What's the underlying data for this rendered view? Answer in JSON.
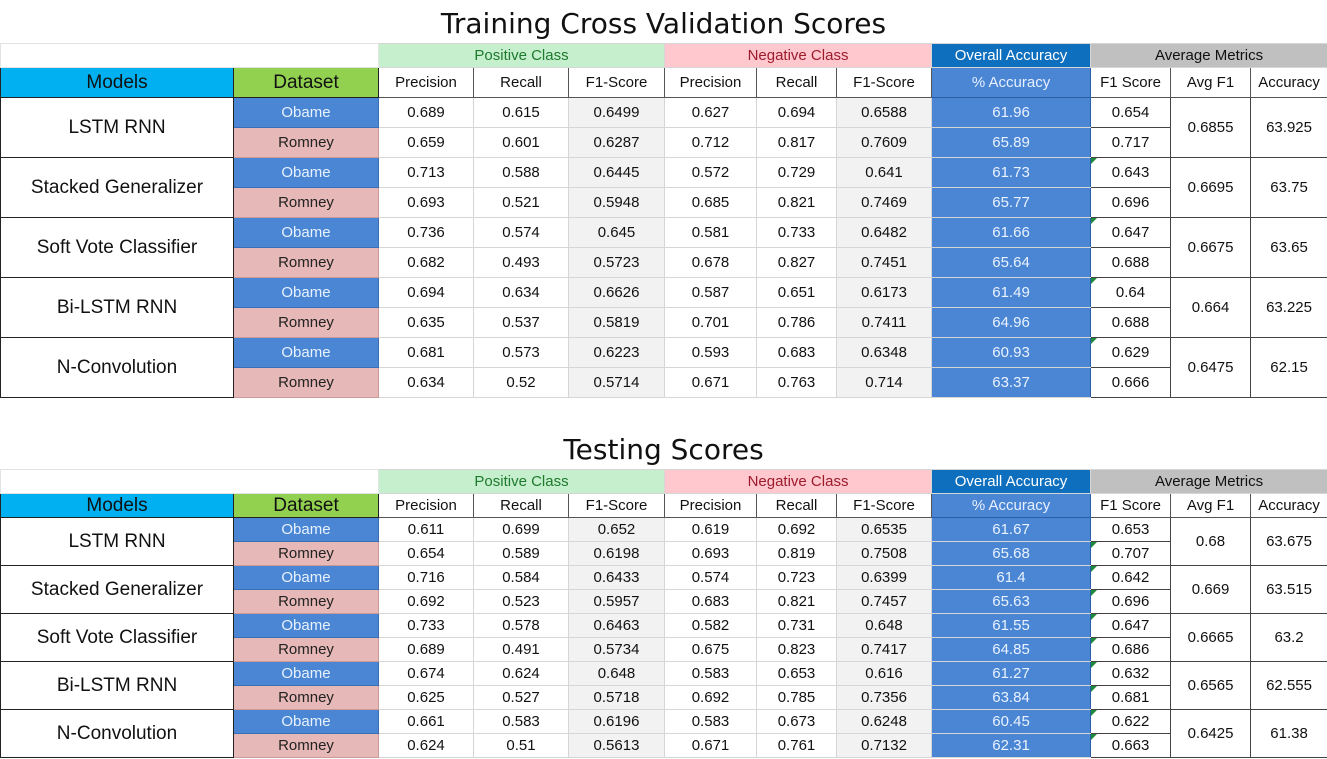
{
  "labels": {
    "models": "Models",
    "dataset": "Dataset",
    "positive_class": "Positive Class",
    "negative_class": "Negative Class",
    "overall_accuracy": "Overall Accuracy",
    "average_metrics": "Average Metrics",
    "precision": "Precision",
    "recall": "Recall",
    "f1_score": "F1-Score",
    "pct_accuracy": "% Accuracy",
    "f1_score_avg": "F1 Score",
    "avg_f1": "Avg F1",
    "accuracy": "Accuracy"
  },
  "colors": {
    "positive_header": "#c6efce",
    "negative_header": "#ffc7ce",
    "overall_header": "#0f6fbf",
    "average_header": "#c0c0c0",
    "models_header": "#00b0f0",
    "dataset_header": "#92d050",
    "obame_cell": "#4a86d4",
    "romney_cell": "#e6b8b7"
  },
  "sections": [
    {
      "title": "Training Cross Validation Scores",
      "models": [
        {
          "name": "LSTM RNN",
          "avg_f1": "0.6855",
          "accuracy": "63.925",
          "rows": [
            {
              "dataset": "Obame",
              "pos": [
                "0.689",
                "0.615",
                "0.6499"
              ],
              "neg": [
                "0.627",
                "0.694",
                "0.6588"
              ],
              "acc": "61.96",
              "f1": "0.654"
            },
            {
              "dataset": "Romney",
              "pos": [
                "0.659",
                "0.601",
                "0.6287"
              ],
              "neg": [
                "0.712",
                "0.817",
                "0.7609"
              ],
              "acc": "65.89",
              "f1": "0.717"
            }
          ]
        },
        {
          "name": "Stacked Generalizer",
          "avg_f1": "0.6695",
          "accuracy": "63.75",
          "rows": [
            {
              "dataset": "Obame",
              "pos": [
                "0.713",
                "0.588",
                "0.6445"
              ],
              "neg": [
                "0.572",
                "0.729",
                "0.641"
              ],
              "acc": "61.73",
              "f1": "0.643"
            },
            {
              "dataset": "Romney",
              "pos": [
                "0.693",
                "0.521",
                "0.5948"
              ],
              "neg": [
                "0.685",
                "0.821",
                "0.7469"
              ],
              "acc": "65.77",
              "f1": "0.696"
            }
          ]
        },
        {
          "name": "Soft Vote Classifier",
          "avg_f1": "0.6675",
          "accuracy": "63.65",
          "rows": [
            {
              "dataset": "Obame",
              "pos": [
                "0.736",
                "0.574",
                "0.645"
              ],
              "neg": [
                "0.581",
                "0.733",
                "0.6482"
              ],
              "acc": "61.66",
              "f1": "0.647"
            },
            {
              "dataset": "Romney",
              "pos": [
                "0.682",
                "0.493",
                "0.5723"
              ],
              "neg": [
                "0.678",
                "0.827",
                "0.7451"
              ],
              "acc": "65.64",
              "f1": "0.688"
            }
          ]
        },
        {
          "name": "Bi-LSTM RNN",
          "avg_f1": "0.664",
          "accuracy": "63.225",
          "rows": [
            {
              "dataset": "Obame",
              "pos": [
                "0.694",
                "0.634",
                "0.6626"
              ],
              "neg": [
                "0.587",
                "0.651",
                "0.6173"
              ],
              "acc": "61.49",
              "f1": "0.64"
            },
            {
              "dataset": "Romney",
              "pos": [
                "0.635",
                "0.537",
                "0.5819"
              ],
              "neg": [
                "0.701",
                "0.786",
                "0.7411"
              ],
              "acc": "64.96",
              "f1": "0.688"
            }
          ]
        },
        {
          "name": "N-Convolution",
          "avg_f1": "0.6475",
          "accuracy": "62.15",
          "rows": [
            {
              "dataset": "Obame",
              "pos": [
                "0.681",
                "0.573",
                "0.6223"
              ],
              "neg": [
                "0.593",
                "0.683",
                "0.6348"
              ],
              "acc": "60.93",
              "f1": "0.629"
            },
            {
              "dataset": "Romney",
              "pos": [
                "0.634",
                "0.52",
                "0.5714"
              ],
              "neg": [
                "0.671",
                "0.763",
                "0.714"
              ],
              "acc": "63.37",
              "f1": "0.666"
            }
          ]
        }
      ]
    },
    {
      "title": "Testing Scores",
      "models": [
        {
          "name": "LSTM RNN",
          "avg_f1": "0.68",
          "accuracy": "63.675",
          "rows": [
            {
              "dataset": "Obame",
              "pos": [
                "0.611",
                "0.699",
                "0.652"
              ],
              "neg": [
                "0.619",
                "0.692",
                "0.6535"
              ],
              "acc": "61.67",
              "f1": "0.653"
            },
            {
              "dataset": "Romney",
              "pos": [
                "0.654",
                "0.589",
                "0.6198"
              ],
              "neg": [
                "0.693",
                "0.819",
                "0.7508"
              ],
              "acc": "65.68",
              "f1": "0.707"
            }
          ]
        },
        {
          "name": "Stacked Generalizer",
          "avg_f1": "0.669",
          "accuracy": "63.515",
          "rows": [
            {
              "dataset": "Obame",
              "pos": [
                "0.716",
                "0.584",
                "0.6433"
              ],
              "neg": [
                "0.574",
                "0.723",
                "0.6399"
              ],
              "acc": "61.4",
              "f1": "0.642"
            },
            {
              "dataset": "Romney",
              "pos": [
                "0.692",
                "0.523",
                "0.5957"
              ],
              "neg": [
                "0.683",
                "0.821",
                "0.7457"
              ],
              "acc": "65.63",
              "f1": "0.696"
            }
          ]
        },
        {
          "name": "Soft Vote Classifier",
          "avg_f1": "0.6665",
          "accuracy": "63.2",
          "rows": [
            {
              "dataset": "Obame",
              "pos": [
                "0.733",
                "0.578",
                "0.6463"
              ],
              "neg": [
                "0.582",
                "0.731",
                "0.648"
              ],
              "acc": "61.55",
              "f1": "0.647"
            },
            {
              "dataset": "Romney",
              "pos": [
                "0.689",
                "0.491",
                "0.5734"
              ],
              "neg": [
                "0.675",
                "0.823",
                "0.7417"
              ],
              "acc": "64.85",
              "f1": "0.686"
            }
          ]
        },
        {
          "name": "Bi-LSTM RNN",
          "avg_f1": "0.6565",
          "accuracy": "62.555",
          "rows": [
            {
              "dataset": "Obame",
              "pos": [
                "0.674",
                "0.624",
                "0.648"
              ],
              "neg": [
                "0.583",
                "0.653",
                "0.616"
              ],
              "acc": "61.27",
              "f1": "0.632"
            },
            {
              "dataset": "Romney",
              "pos": [
                "0.625",
                "0.527",
                "0.5718"
              ],
              "neg": [
                "0.692",
                "0.785",
                "0.7356"
              ],
              "acc": "63.84",
              "f1": "0.681"
            }
          ]
        },
        {
          "name": "N-Convolution",
          "avg_f1": "0.6425",
          "accuracy": "61.38",
          "rows": [
            {
              "dataset": "Obame",
              "pos": [
                "0.661",
                "0.583",
                "0.6196"
              ],
              "neg": [
                "0.583",
                "0.673",
                "0.6248"
              ],
              "acc": "60.45",
              "f1": "0.622"
            },
            {
              "dataset": "Romney",
              "pos": [
                "0.624",
                "0.51",
                "0.5613"
              ],
              "neg": [
                "0.671",
                "0.761",
                "0.7132"
              ],
              "acc": "62.31",
              "f1": "0.663"
            }
          ]
        }
      ]
    }
  ]
}
